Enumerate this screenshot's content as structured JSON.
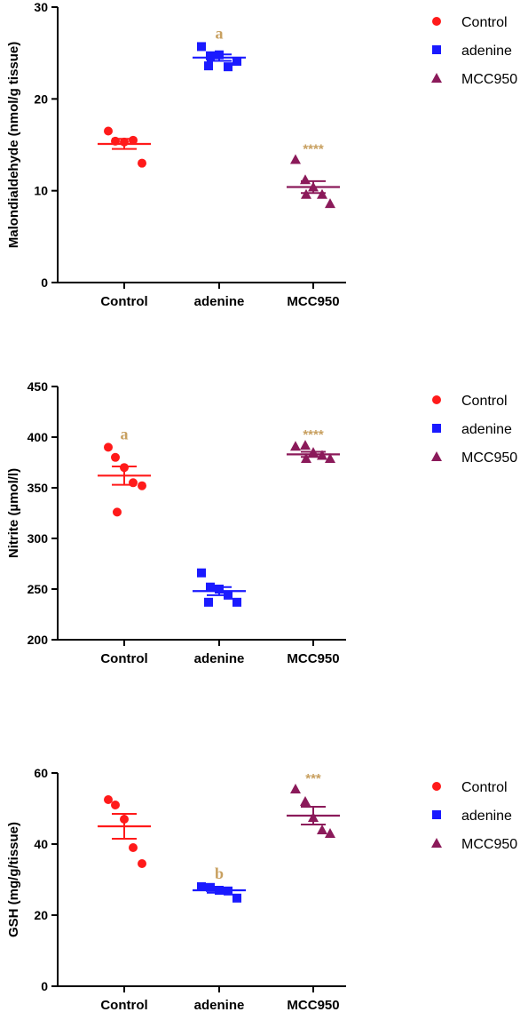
{
  "colors": {
    "Control": "#ff1a1a",
    "adenine": "#1a1aff",
    "MCC950": "#8b1a5a",
    "significance": "#c8a060"
  },
  "chart_data": [
    {
      "type": "scatter",
      "ylabel": "Malondialdehyde (nmol/g tissue)",
      "ylim": [
        0,
        30
      ],
      "yticks": [
        "0",
        "10",
        "20",
        "30"
      ],
      "categories": [
        "Control",
        "adenine",
        "MCC950"
      ],
      "legend": [
        "Control",
        "adenine",
        "MCC950"
      ],
      "series": [
        {
          "name": "Control",
          "marker": "circle",
          "points": [
            16.5,
            15.4,
            15.3,
            15.5,
            13.0
          ],
          "mean": 15.1,
          "sem": 0.55
        },
        {
          "name": "adenine",
          "marker": "square",
          "points": [
            25.7,
            24.7,
            24.8,
            23.5,
            24.1,
            23.6
          ],
          "mean": 24.5,
          "sem": 0.35
        },
        {
          "name": "MCC950",
          "marker": "triangle",
          "points": [
            13.4,
            11.2,
            10.4,
            9.6,
            8.6,
            9.6
          ],
          "mean": 10.4,
          "sem": 0.65
        }
      ],
      "significance": [
        "",
        "a",
        "****"
      ]
    },
    {
      "type": "scatter",
      "ylabel": "Nitrite (µmol/l)",
      "ylim": [
        200,
        450
      ],
      "yticks": [
        "200",
        "250",
        "300",
        "350",
        "400",
        "450"
      ],
      "categories": [
        "Control",
        "adenine",
        "MCC950"
      ],
      "legend": [
        "Control",
        "adenine",
        "MCC950"
      ],
      "series": [
        {
          "name": "Control",
          "marker": "circle",
          "points": [
            390,
            380,
            370,
            355,
            352,
            326
          ],
          "mean": 362,
          "sem": 9
        },
        {
          "name": "adenine",
          "marker": "square",
          "points": [
            266,
            252,
            250,
            244,
            237,
            237
          ],
          "mean": 248,
          "sem": 4
        },
        {
          "name": "MCC950",
          "marker": "triangle",
          "points": [
            391,
            392,
            385,
            382,
            379,
            379
          ],
          "mean": 383,
          "sem": 2.5
        }
      ],
      "significance": [
        "a",
        "",
        "****"
      ]
    },
    {
      "type": "scatter",
      "ylabel": "GSH  (mg/g/tissue)",
      "ylim": [
        0,
        60
      ],
      "yticks": [
        "0",
        "20",
        "40",
        "60"
      ],
      "categories": [
        "Control",
        "adenine",
        "MCC950"
      ],
      "legend": [
        "Control",
        "adenine",
        "MCC950"
      ],
      "series": [
        {
          "name": "Control",
          "marker": "circle",
          "points": [
            52.5,
            51.0,
            47.0,
            39.0,
            34.5
          ],
          "mean": 45.0,
          "sem": 3.5
        },
        {
          "name": "adenine",
          "marker": "square",
          "points": [
            28.0,
            27.8,
            27.0,
            26.8,
            24.8
          ],
          "mean": 27.0,
          "sem": 0.7
        },
        {
          "name": "MCC950",
          "marker": "triangle",
          "points": [
            55.5,
            52.0,
            47.5,
            44.0,
            43.0
          ],
          "mean": 48.0,
          "sem": 2.5
        }
      ],
      "significance": [
        "",
        "b",
        "***"
      ]
    }
  ]
}
